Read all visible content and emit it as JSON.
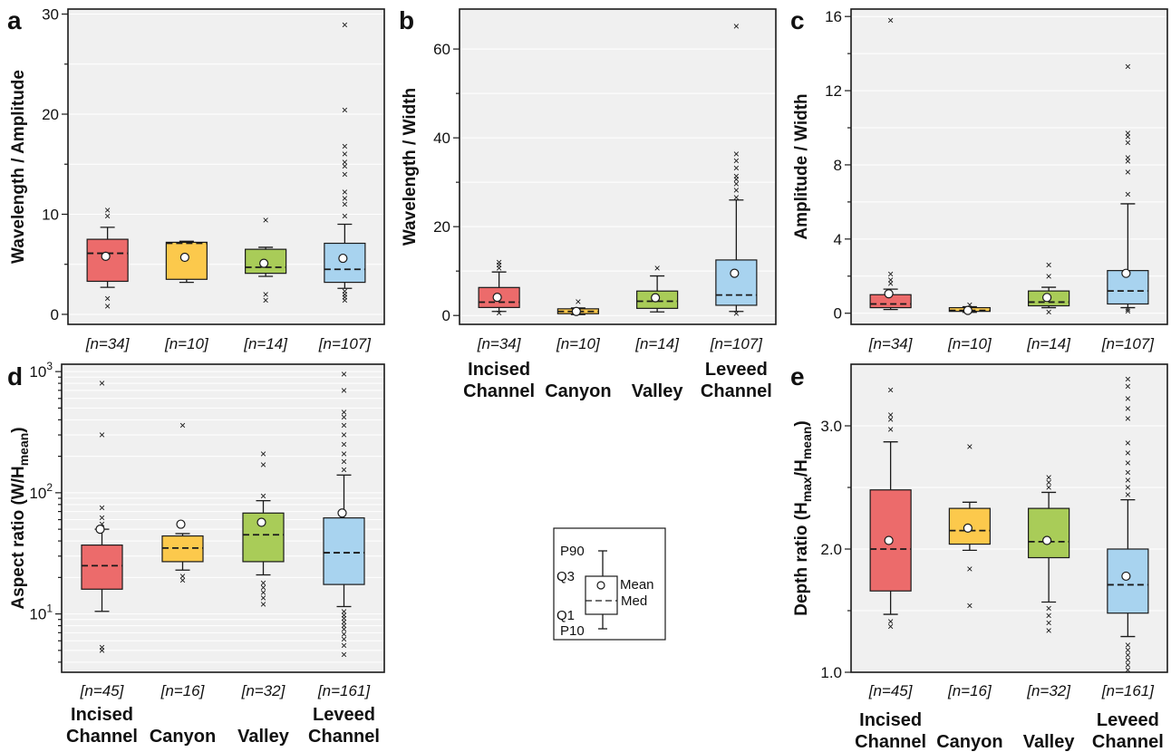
{
  "chart_data": [
    {
      "panel": "a",
      "type": "box",
      "ylabel": "Wavelength / Amplitude",
      "yscale": "linear",
      "ylim": [
        -1,
        30.5
      ],
      "yticks": [
        0,
        10,
        20,
        30
      ],
      "yminor": [
        5,
        15,
        25
      ],
      "categories": [
        "Incised Channel",
        "Canyon",
        "Valley",
        "Leveed Channel"
      ],
      "n_labels": [
        "[n=34]",
        "[n=10]",
        "[n=14]",
        "[n=107]"
      ],
      "series": [
        {
          "name": "Incised Channel",
          "color": "#ec6b6b",
          "p10": 2.7,
          "q1": 3.3,
          "median": 6.1,
          "q3": 7.5,
          "p90": 8.7,
          "mean": 5.8,
          "outliers": [
            0.8,
            1.6,
            10.4,
            9.8
          ]
        },
        {
          "name": "Canyon",
          "color": "#fcc94c",
          "p10": 3.2,
          "q1": 3.5,
          "median": 7.1,
          "q3": 7.2,
          "p90": 7.3,
          "mean": 5.7,
          "outliers": []
        },
        {
          "name": "Valley",
          "color": "#a9cc58",
          "p10": 3.8,
          "q1": 4.1,
          "median": 4.7,
          "q3": 6.5,
          "p90": 6.7,
          "mean": 5.1,
          "outliers": [
            1.4,
            2.0,
            9.4
          ]
        },
        {
          "name": "Leveed Channel",
          "color": "#a8d3ef",
          "p10": 2.6,
          "q1": 3.2,
          "median": 4.5,
          "q3": 7.1,
          "p90": 9.0,
          "mean": 5.6,
          "outliers": [
            1.4,
            1.7,
            2.0,
            2.3,
            9.8,
            11.0,
            11.6,
            12.2,
            14.0,
            14.8,
            15.2,
            16.0,
            16.8,
            20.4,
            28.9
          ]
        }
      ]
    },
    {
      "panel": "b",
      "type": "box",
      "ylabel": "Wavelength / Width",
      "yscale": "linear",
      "ylim": [
        -2,
        69
      ],
      "yticks": [
        0,
        20,
        40,
        60
      ],
      "yminor": [
        10,
        30,
        50
      ],
      "categories": [
        "Incised Channel",
        "Canyon",
        "Valley",
        "Leveed Channel"
      ],
      "n_labels": [
        "[n=34]",
        "[n=10]",
        "[n=14]",
        "[n=107]"
      ],
      "series": [
        {
          "name": "Incised Channel",
          "color": "#ec6b6b",
          "p10": 0.9,
          "q1": 1.8,
          "median": 3.0,
          "q3": 6.3,
          "p90": 9.8,
          "mean": 4.1,
          "outliers": [
            0.6,
            10.6,
            11.4,
            12.0
          ]
        },
        {
          "name": "Canyon",
          "color": "#fcc94c",
          "p10": 0.2,
          "q1": 0.4,
          "median": 0.9,
          "q3": 1.5,
          "p90": 1.7,
          "mean": 0.9,
          "outliers": [
            3.1
          ]
        },
        {
          "name": "Valley",
          "color": "#a9cc58",
          "p10": 0.8,
          "q1": 1.6,
          "median": 3.2,
          "q3": 5.5,
          "p90": 8.9,
          "mean": 4.0,
          "outliers": [
            10.6
          ]
        },
        {
          "name": "Leveed Channel",
          "color": "#a8d3ef",
          "p10": 0.9,
          "q1": 2.3,
          "median": 4.6,
          "q3": 12.5,
          "p90": 26.0,
          "mean": 9.5,
          "outliers": [
            0.4,
            26.6,
            28.2,
            29.6,
            30.6,
            31.4,
            33.2,
            34.8,
            36.4,
            65.1
          ]
        }
      ]
    },
    {
      "panel": "c",
      "type": "box",
      "ylabel": "Amplitude / Width",
      "yscale": "linear",
      "ylim": [
        -0.6,
        16.4
      ],
      "yticks": [
        0,
        4,
        8,
        12,
        16
      ],
      "yminor": [
        2,
        6,
        10,
        14
      ],
      "categories": [
        "Incised Channel",
        "Canyon",
        "Valley",
        "Leveed Channel"
      ],
      "n_labels": [
        "[n=34]",
        "[n=10]",
        "[n=14]",
        "[n=107]"
      ],
      "series": [
        {
          "name": "Incised Channel",
          "color": "#ec6b6b",
          "p10": 0.2,
          "q1": 0.3,
          "median": 0.5,
          "q3": 1.0,
          "p90": 1.3,
          "mean": 1.05,
          "outliers": [
            1.6,
            1.8,
            2.1,
            15.8
          ]
        },
        {
          "name": "Canyon",
          "color": "#fcc94c",
          "p10": 0.05,
          "q1": 0.1,
          "median": 0.15,
          "q3": 0.3,
          "p90": 0.35,
          "mean": 0.15,
          "outliers": [
            0.45
          ]
        },
        {
          "name": "Valley",
          "color": "#a9cc58",
          "p10": 0.3,
          "q1": 0.4,
          "median": 0.6,
          "q3": 1.2,
          "p90": 1.4,
          "mean": 0.85,
          "outliers": [
            0.05,
            2.0,
            2.6
          ]
        },
        {
          "name": "Leveed Channel",
          "color": "#a8d3ef",
          "p10": 0.3,
          "q1": 0.5,
          "median": 1.2,
          "q3": 2.3,
          "p90": 5.9,
          "mean": 2.15,
          "outliers": [
            0.1,
            0.2,
            6.4,
            7.6,
            8.2,
            8.4,
            9.2,
            9.5,
            9.7,
            13.3
          ]
        }
      ]
    },
    {
      "panel": "d",
      "type": "box",
      "ylabel_parts": [
        "Aspect ratio (W/H",
        "mean",
        ")"
      ],
      "yscale": "log",
      "ylim": [
        3.3,
        1150
      ],
      "yticks": [
        10,
        100,
        1000
      ],
      "yticklabels": [
        [
          "10",
          "1"
        ],
        [
          "10",
          "2"
        ],
        [
          "10",
          "3"
        ]
      ],
      "categories": [
        "Incised Channel",
        "Canyon",
        "Valley",
        "Leveed Channel"
      ],
      "n_labels": [
        "[n=45]",
        "[n=16]",
        "[n=32]",
        "[n=161]"
      ],
      "series": [
        {
          "name": "Incised Channel",
          "color": "#ec6b6b",
          "p10": 10.5,
          "q1": 16,
          "median": 25,
          "q3": 37,
          "p90": 50,
          "mean": 50,
          "outliers": [
            5,
            5.3,
            55,
            62,
            75,
            300,
            800
          ]
        },
        {
          "name": "Canyon",
          "color": "#fcc94c",
          "p10": 23,
          "q1": 27,
          "median": 35,
          "q3": 44,
          "p90": 46,
          "mean": 55,
          "outliers": [
            19,
            20.5,
            360
          ]
        },
        {
          "name": "Valley",
          "color": "#a9cc58",
          "p10": 21,
          "q1": 27,
          "median": 45,
          "q3": 68,
          "p90": 86,
          "mean": 57,
          "outliers": [
            12,
            13.5,
            15,
            16.5,
            18,
            94,
            170,
            210
          ]
        },
        {
          "name": "Leveed Channel",
          "color": "#a8d3ef",
          "p10": 11.5,
          "q1": 17.5,
          "median": 32,
          "q3": 62,
          "p90": 140,
          "mean": 68,
          "outliers": [
            4.6,
            5.5,
            6.2,
            6.8,
            7.5,
            8,
            8.6,
            9.2,
            9.8,
            10.5,
            155,
            180,
            210,
            250,
            300,
            360,
            420,
            460,
            700,
            950
          ]
        }
      ]
    },
    {
      "panel": "e",
      "type": "box",
      "ylabel_parts": [
        "Depth ratio (H",
        "max",
        "/H",
        "mean",
        ")"
      ],
      "yscale": "linear",
      "ylim": [
        1.0,
        3.5
      ],
      "yticks": [
        1.0,
        2.0,
        3.0
      ],
      "yticklabels": [
        "1.0",
        "2.0",
        "3.0"
      ],
      "yminor": [
        1.5,
        2.5
      ],
      "categories": [
        "Incised Channel",
        "Canyon",
        "Valley",
        "Leveed Channel"
      ],
      "n_labels": [
        "[n=45]",
        "[n=16]",
        "[n=32]",
        "[n=161]"
      ],
      "series": [
        {
          "name": "Incised Channel",
          "color": "#ec6b6b",
          "p10": 1.47,
          "q1": 1.66,
          "median": 2.0,
          "q3": 2.48,
          "p90": 2.87,
          "mean": 2.07,
          "outliers": [
            1.37,
            1.41,
            2.97,
            3.05,
            3.09,
            3.29
          ]
        },
        {
          "name": "Canyon",
          "color": "#fcc94c",
          "p10": 1.99,
          "q1": 2.04,
          "median": 2.15,
          "q3": 2.33,
          "p90": 2.38,
          "mean": 2.17,
          "outliers": [
            1.54,
            1.84,
            2.83
          ]
        },
        {
          "name": "Valley",
          "color": "#a9cc58",
          "p10": 1.57,
          "q1": 1.93,
          "median": 2.06,
          "q3": 2.33,
          "p90": 2.46,
          "mean": 2.07,
          "outliers": [
            1.34,
            1.4,
            1.46,
            1.52,
            2.5,
            2.54,
            2.58
          ]
        },
        {
          "name": "Leveed Channel",
          "color": "#a8d3ef",
          "p10": 1.29,
          "q1": 1.48,
          "median": 1.71,
          "q3": 2.0,
          "p90": 2.4,
          "mean": 1.78,
          "outliers": [
            1.02,
            1.06,
            1.1,
            1.14,
            1.18,
            1.22,
            2.44,
            2.5,
            2.56,
            2.62,
            2.7,
            2.78,
            2.86,
            3.06,
            3.14,
            3.22,
            3.32,
            3.38
          ]
        }
      ]
    }
  ],
  "legend": {
    "labels": {
      "p90": "P90",
      "q3": "Q3",
      "q1": "Q1",
      "p10": "P10",
      "mean": "Mean",
      "median": "Med"
    }
  }
}
